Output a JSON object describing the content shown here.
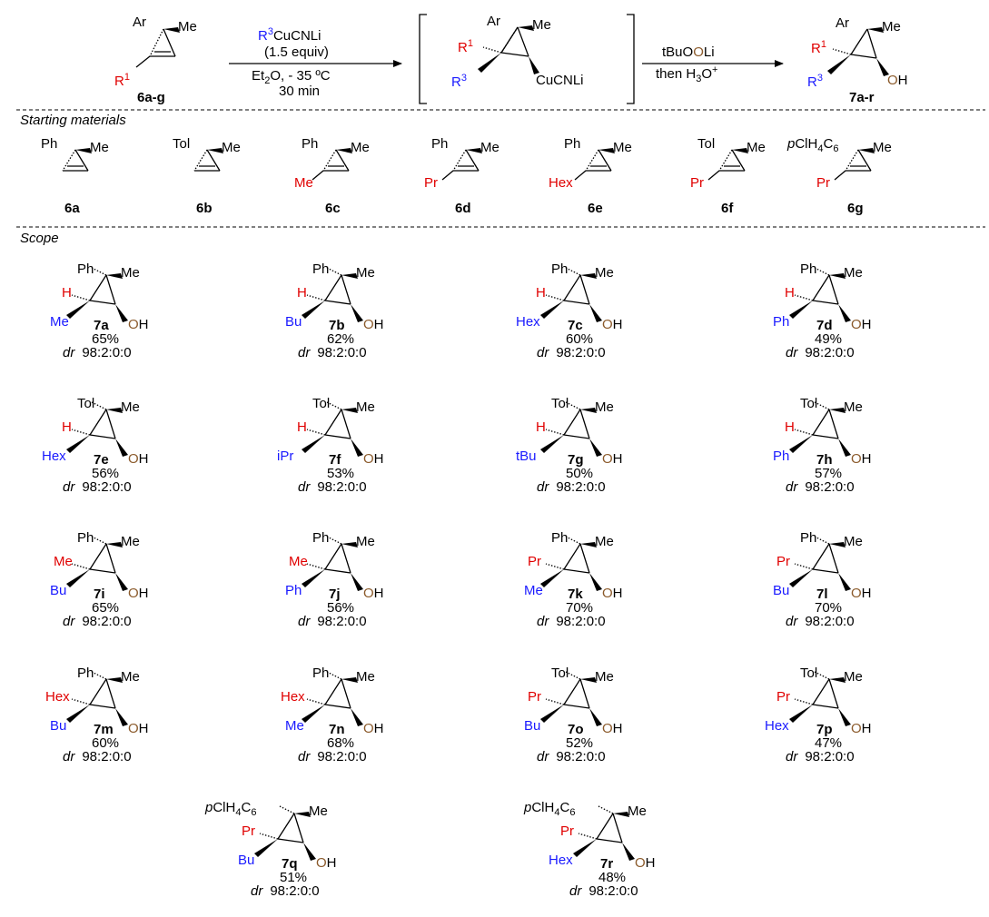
{
  "colors": {
    "r1": "#e00000",
    "r3": "#1a1aff",
    "oxygen": "#8b5a2b",
    "text": "#000000"
  },
  "scheme": {
    "start": {
      "top": "Ar",
      "right": "Me",
      "r1": "R",
      "r1_sup": "1",
      "code": "6a-g"
    },
    "step1": {
      "reagent_main": "CuCNLi",
      "reagent_r": "R",
      "reagent_sup": "3",
      "equiv": "(1.5 equiv)",
      "solvent_a": "Et",
      "solvent_sub": "2",
      "solvent_b": "O, - 35 ºC",
      "time": "30 min"
    },
    "intermediate": {
      "top": "Ar",
      "right": "Me",
      "r1": "R",
      "r1_sup": "1",
      "r3": "R",
      "r3_sup": "3",
      "cu": "CuCNLi"
    },
    "step2": {
      "a": "tBuO",
      "o": "O",
      "b": "Li",
      "c": "then H",
      "c_sub": "3",
      "c_o": "O",
      "c_sup": "+"
    },
    "product": {
      "top": "Ar",
      "right": "Me",
      "r1": "R",
      "r1_sup": "1",
      "r3": "R",
      "r3_sup": "3",
      "o": "O",
      "h": "H",
      "code": "7a-r"
    }
  },
  "sections": {
    "starting": "Starting materials",
    "scope": "Scope"
  },
  "starting_materials": [
    {
      "ar": "Ph",
      "me": "Me",
      "sub": "",
      "code": "6a"
    },
    {
      "ar": "Tol",
      "me": "Me",
      "sub": "",
      "code": "6b"
    },
    {
      "ar": "Ph",
      "me": "Me",
      "sub": "Me",
      "code": "6c"
    },
    {
      "ar": "Ph",
      "me": "Me",
      "sub": "Pr",
      "code": "6d"
    },
    {
      "ar": "Ph",
      "me": "Me",
      "sub": "Hex",
      "code": "6e"
    },
    {
      "ar": "Tol",
      "me": "Me",
      "sub": "Pr",
      "code": "6f"
    },
    {
      "ar_pre": "p",
      "ar": "ClH",
      "ar_sub": "4",
      "ar_post": "C",
      "ar_sub2": "6",
      "me": "Me",
      "sub": "Pr",
      "code": "6g"
    }
  ],
  "scope": [
    {
      "ar": "Ph",
      "me": "Me",
      "r1": "H",
      "r3": "Me",
      "o": "O",
      "h": "H",
      "code": "7a",
      "yield": "65%",
      "dr_label": "dr",
      "dr": "98:2:0:0"
    },
    {
      "ar": "Ph",
      "me": "Me",
      "r1": "H",
      "r3": "Bu",
      "o": "O",
      "h": "H",
      "code": "7b",
      "yield": "62%",
      "dr_label": "dr",
      "dr": "98:2:0:0"
    },
    {
      "ar": "Ph",
      "me": "Me",
      "r1": "H",
      "r3": "Hex",
      "o": "O",
      "h": "H",
      "code": "7c",
      "yield": "60%",
      "dr_label": "dr",
      "dr": "98:2:0:0"
    },
    {
      "ar": "Ph",
      "me": "Me",
      "r1": "H",
      "r3": "Ph",
      "o": "O",
      "h": "H",
      "code": "7d",
      "yield": "49%",
      "dr_label": "dr",
      "dr": "98:2:0:0"
    },
    {
      "ar": "Tol",
      "me": "Me",
      "r1": "H",
      "r3": "Hex",
      "o": "O",
      "h": "H",
      "code": "7e",
      "yield": "56%",
      "dr_label": "dr",
      "dr": "98:2:0:0"
    },
    {
      "ar": "Tol",
      "me": "Me",
      "r1": "H",
      "r3": "iPr",
      "o": "O",
      "h": "H",
      "code": "7f",
      "yield": "53%",
      "dr_label": "dr",
      "dr": "98:2:0:0"
    },
    {
      "ar": "Tol",
      "me": "Me",
      "r1": "H",
      "r3": "tBu",
      "o": "O",
      "h": "H",
      "code": "7g",
      "yield": "50%",
      "dr_label": "dr",
      "dr": "98:2:0:0"
    },
    {
      "ar": "Tol",
      "me": "Me",
      "r1": "H",
      "r3": "Ph",
      "o": "O",
      "h": "H",
      "code": "7h",
      "yield": "57%",
      "dr_label": "dr",
      "dr": "98:2:0:0"
    },
    {
      "ar": "Ph",
      "me": "Me",
      "r1": "Me",
      "r3": "Bu",
      "o": "O",
      "h": "H",
      "code": "7i",
      "yield": "65%",
      "dr_label": "dr",
      "dr": "98:2:0:0"
    },
    {
      "ar": "Ph",
      "me": "Me",
      "r1": "Me",
      "r3": "Ph",
      "o": "O",
      "h": "H",
      "code": "7j",
      "yield": "56%",
      "dr_label": "dr",
      "dr": "98:2:0:0"
    },
    {
      "ar": "Ph",
      "me": "Me",
      "r1": "Pr",
      "r3": "Me",
      "o": "O",
      "h": "H",
      "code": "7k",
      "yield": "70%",
      "dr_label": "dr",
      "dr": "98:2:0:0"
    },
    {
      "ar": "Ph",
      "me": "Me",
      "r1": "Pr",
      "r3": "Bu",
      "o": "O",
      "h": "H",
      "code": "7l",
      "yield": "70%",
      "dr_label": "dr",
      "dr": "98:2:0:0"
    },
    {
      "ar": "Ph",
      "me": "Me",
      "r1": "Hex",
      "r3": "Bu",
      "o": "O",
      "h": "H",
      "code": "7m",
      "yield": "60%",
      "dr_label": "dr",
      "dr": "98:2:0:0"
    },
    {
      "ar": "Ph",
      "me": "Me",
      "r1": "Hex",
      "r3": "Me",
      "o": "O",
      "h": "H",
      "code": "7n",
      "yield": "68%",
      "dr_label": "dr",
      "dr": "98:2:0:0"
    },
    {
      "ar": "Tol",
      "me": "Me",
      "r1": "Pr",
      "r3": "Bu",
      "o": "O",
      "h": "H",
      "code": "7o",
      "yield": "52%",
      "dr_label": "dr",
      "dr": "98:2:0:0"
    },
    {
      "ar": "Tol",
      "me": "Me",
      "r1": "Pr",
      "r3": "Hex",
      "o": "O",
      "h": "H",
      "code": "7p",
      "yield": "47%",
      "dr_label": "dr",
      "dr": "98:2:0:0"
    },
    {
      "ar_pre": "p",
      "ar": "ClH",
      "ar_sub": "4",
      "ar_post": "C",
      "ar_sub2": "6",
      "me": "Me",
      "r1": "Pr",
      "r3": "Bu",
      "o": "O",
      "h": "H",
      "code": "7q",
      "yield": "51%",
      "dr_label": "dr",
      "dr": "98:2:0:0"
    },
    {
      "ar_pre": "p",
      "ar": "ClH",
      "ar_sub": "4",
      "ar_post": "C",
      "ar_sub2": "6",
      "me": "Me",
      "r1": "Pr",
      "r3": "Hex",
      "o": "O",
      "h": "H",
      "code": "7r",
      "yield": "48%",
      "dr_label": "dr",
      "dr": "98:2:0:0"
    }
  ]
}
